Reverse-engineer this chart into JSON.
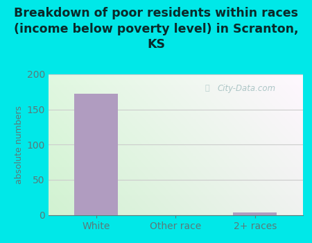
{
  "title": "Breakdown of poor residents within races\n(income below poverty level) in Scranton,\nKS",
  "categories": [
    "White",
    "Other race",
    "2+ races"
  ],
  "values": [
    172,
    0,
    4
  ],
  "bar_color": "#b09cc0",
  "ylabel": "absolute numbers",
  "ylim": [
    0,
    200
  ],
  "yticks": [
    0,
    50,
    100,
    150,
    200
  ],
  "background_outer": "#00e8e8",
  "grid_color": "#cccccc",
  "title_color": "#0a2a2a",
  "title_fontsize": 12.5,
  "tick_color": "#5a7a7a",
  "watermark": "City-Data.com",
  "watermark_color": "#a0bebe"
}
